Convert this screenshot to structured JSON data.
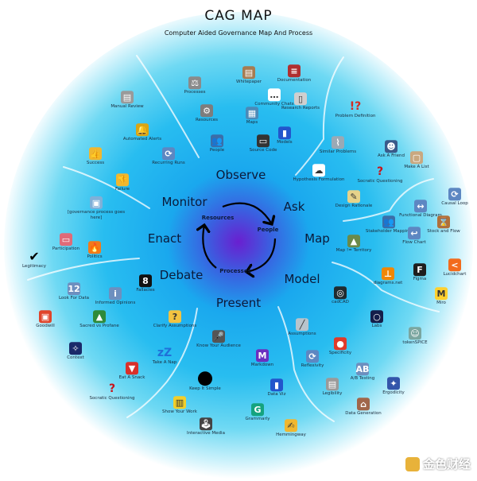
{
  "header": {
    "title": "CAG MAP",
    "subtitle": "Computer Aided Governance Map And Process"
  },
  "cycle": {
    "nodes": [
      "Resources",
      "People",
      "Processes"
    ]
  },
  "stages": [
    "Observe",
    "Ask",
    "Map",
    "Model",
    "Present",
    "Debate",
    "Enact",
    "Monitor"
  ],
  "items": [
    {
      "label": "Processes",
      "icon": "scales-icon",
      "glyph": "⚖",
      "color": "#8a8a8a"
    },
    {
      "label": "Whitepaper",
      "icon": "scroll-icon",
      "glyph": "▤",
      "color": "#a67c52"
    },
    {
      "label": "Documentation",
      "icon": "books-icon",
      "glyph": "≡",
      "color": "#b03030"
    },
    {
      "label": "Community Chats",
      "icon": "speech-bubble-icon",
      "glyph": "…",
      "color": "#ffffff"
    },
    {
      "label": "Research Reports",
      "icon": "document-icon",
      "glyph": "▯",
      "color": "#cfcfcf"
    },
    {
      "label": "Resources",
      "icon": "gear-icon",
      "glyph": "⚙",
      "color": "#7d7d7d"
    },
    {
      "label": "Maps",
      "icon": "map-icon",
      "glyph": "▦",
      "color": "#4a8ab8"
    },
    {
      "label": "Models",
      "icon": "bar-chart-icon",
      "glyph": "▮",
      "color": "#2255cc"
    },
    {
      "label": "People",
      "icon": "people-icon",
      "glyph": "👥",
      "color": "#3b6ea8"
    },
    {
      "label": "Source Code",
      "icon": "laptop-icon",
      "glyph": "▭",
      "color": "#333333"
    },
    {
      "label": "Manual Review",
      "icon": "newspaper-icon",
      "glyph": "▤",
      "color": "#9a9a9a"
    },
    {
      "label": "Automated Alerts",
      "icon": "bell-icon",
      "glyph": "🔔",
      "color": "#d9a514"
    },
    {
      "label": "Success",
      "icon": "thumbs-up-icon",
      "glyph": "👍",
      "color": "#f0b72f"
    },
    {
      "label": "Recurring Runs",
      "icon": "repeat-icon",
      "glyph": "⟳",
      "color": "#5d87c2"
    },
    {
      "label": "Failure",
      "icon": "thumbs-down-icon",
      "glyph": "👎",
      "color": "#f0b72f"
    },
    {
      "label": "[governance process goes here]",
      "icon": "ballot-box-icon",
      "glyph": "▣",
      "color": "#7fb0d8"
    },
    {
      "label": "Problem Definition",
      "icon": "interrobang-icon",
      "glyph": "!?",
      "color": "#d62b1f"
    },
    {
      "label": "Similar Problems",
      "icon": "paperclip-icon",
      "glyph": "⌇",
      "color": "#9aa9b5"
    },
    {
      "label": "Ask A Friend",
      "icon": "speaking-head-icon",
      "glyph": "☻",
      "color": "#3a5a8a"
    },
    {
      "label": "Make A List",
      "icon": "frame-icon",
      "glyph": "▢",
      "color": "#c9a880"
    },
    {
      "label": "Hypothesis Formulation",
      "icon": "thought-bubble-icon",
      "glyph": "☁",
      "color": "#ffffff"
    },
    {
      "label": "Socratic Questioning",
      "icon": "question-mark-icon",
      "glyph": "?",
      "color": "#c8141a"
    },
    {
      "label": "Design Rationale",
      "icon": "memo-icon",
      "glyph": "✎",
      "color": "#e6d38a"
    },
    {
      "label": "Functional Diagram",
      "icon": "left-right-arrow-icon",
      "glyph": "↔",
      "color": "#5d87c2"
    },
    {
      "label": "Causal Loop",
      "icon": "repeat-icon",
      "glyph": "⟳",
      "color": "#5d87c2"
    },
    {
      "label": "Stakeholder Mapping",
      "icon": "people-icon",
      "glyph": "👥",
      "color": "#3b6ea8"
    },
    {
      "label": "Stock and Flow",
      "icon": "hourglass-icon",
      "glyph": "⌛",
      "color": "#b0703a"
    },
    {
      "label": "Flow Chart",
      "icon": "return-arrow-icon",
      "glyph": "↩",
      "color": "#5d87c2"
    },
    {
      "label": "Map != Territory",
      "icon": "mountain-map-icon",
      "glyph": "▲",
      "color": "#6a8a4a"
    },
    {
      "label": "diagrams.net",
      "icon": "diagrams-net-logo-icon",
      "glyph": "⊥",
      "color": "#f08705"
    },
    {
      "label": "Figma",
      "icon": "figma-logo-icon",
      "glyph": "F",
      "color": "#1e1e1e"
    },
    {
      "label": "Lucidchart",
      "icon": "lucidchart-logo-icon",
      "glyph": "<",
      "color": "#f26b1d"
    },
    {
      "label": "Miro",
      "icon": "miro-logo-icon",
      "glyph": "M",
      "color": "#ffd02f"
    },
    {
      "label": "cadCAD",
      "icon": "cadcad-logo-icon",
      "glyph": "◎",
      "color": "#1f2b30"
    },
    {
      "label": "Labs",
      "icon": "labs-logo-icon",
      "glyph": "○",
      "color": "#141e4a"
    },
    {
      "label": "tokenSPICE",
      "icon": "robot-icon",
      "glyph": "☺",
      "color": "#7aa6a0"
    },
    {
      "label": "Assumptions",
      "icon": "eraser-icon",
      "glyph": "╱",
      "color": "#b8c4cc"
    },
    {
      "label": "Specificity",
      "icon": "pin-icon",
      "glyph": "●",
      "color": "#e03a2a"
    },
    {
      "label": "Reflexivity",
      "icon": "repeat-icon",
      "glyph": "⟳",
      "color": "#5d87c2"
    },
    {
      "label": "A/B Testing",
      "icon": "abcd-icon",
      "glyph": "AB",
      "color": "#6d8fbf"
    },
    {
      "label": "Ergodicity",
      "icon": "satellite-icon",
      "glyph": "✦",
      "color": "#3355aa"
    },
    {
      "label": "Legibility",
      "icon": "newspaper-icon",
      "glyph": "▤",
      "color": "#9a9a9a"
    },
    {
      "label": "Data Generation",
      "icon": "factory-icon",
      "glyph": "⌂",
      "color": "#a0664a"
    },
    {
      "label": "Markdown",
      "icon": "markdown-logo-icon",
      "glyph": "M",
      "color": "#6b2fbf"
    },
    {
      "label": "Know Your Audience",
      "icon": "microphone-icon",
      "glyph": "🎤",
      "color": "#555555"
    },
    {
      "label": "Data Viz",
      "icon": "bar-chart-icon",
      "glyph": "▮",
      "color": "#2255cc"
    },
    {
      "label": "Grammarly",
      "icon": "grammarly-logo-icon",
      "glyph": "G",
      "color": "#15a37f"
    },
    {
      "label": "Hemmingway",
      "icon": "writing-hand-icon",
      "glyph": "✍",
      "color": "#f0b72f"
    },
    {
      "label": "Keep It Simple",
      "icon": "black-circle-icon",
      "glyph": "",
      "color": "#000000"
    },
    {
      "label": "Show Your Work",
      "icon": "notebook-icon",
      "glyph": "▥",
      "color": "#f2cf2a"
    },
    {
      "label": "Interactive Media",
      "icon": "joystick-icon",
      "glyph": "🕹",
      "color": "#444444"
    },
    {
      "label": "Take A Nap",
      "icon": "zzz-icon",
      "glyph": "zZ",
      "color": "#2070d8"
    },
    {
      "label": "Fallacies",
      "icon": "eight-ball-icon",
      "glyph": "8",
      "color": "#111111"
    },
    {
      "label": "Clarify Assumptions",
      "icon": "thinking-face-icon",
      "glyph": "?",
      "color": "#f3c340"
    },
    {
      "label": "Eat A Snack",
      "icon": "popcorn-icon",
      "glyph": "▼",
      "color": "#d9302a"
    },
    {
      "label": "Socratic Questioning",
      "icon": "question-mark-icon",
      "glyph": "?",
      "color": "#c8141a"
    },
    {
      "label": "Context",
      "icon": "night-sky-icon",
      "glyph": "✧",
      "color": "#1a2a6a"
    },
    {
      "label": "Look For Data",
      "icon": "numbers-icon",
      "glyph": "12",
      "color": "#6d8fbf"
    },
    {
      "label": "Informed Opinions",
      "icon": "information-icon",
      "glyph": "i",
      "color": "#6d8fbf"
    },
    {
      "label": "Goodwill",
      "icon": "gift-icon",
      "glyph": "▣",
      "color": "#e0442a"
    },
    {
      "label": "Sacred vs Profane",
      "icon": "tree-icon",
      "glyph": "▲",
      "color": "#2f8a3a"
    },
    {
      "label": "Participation",
      "icon": "ticket-icon",
      "glyph": "▭",
      "color": "#e06a78"
    },
    {
      "label": "Politics",
      "icon": "fire-icon",
      "glyph": "🔥",
      "color": "#f27a1a"
    },
    {
      "label": "Legitimacy",
      "icon": "check-mark-icon",
      "glyph": "✔",
      "color": "#000000"
    }
  ],
  "watermark": "金色财经",
  "colors": {
    "center": "#6a1fd0",
    "ring": "#1aa8ee",
    "edge": "#c9f1fb",
    "text": "#0b1a3a"
  }
}
